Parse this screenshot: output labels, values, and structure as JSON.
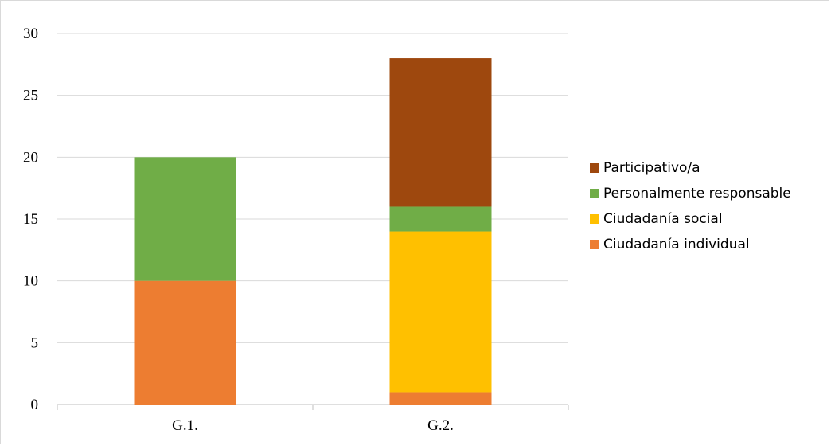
{
  "chart_data": {
    "type": "bar",
    "stacked": true,
    "categories": [
      "G.1.",
      "G.2."
    ],
    "series": [
      {
        "name": "Ciudadanía individual",
        "color": "#ED7D31",
        "values": [
          10,
          1
        ]
      },
      {
        "name": "Ciudadanía social",
        "color": "#FFC000",
        "values": [
          0,
          13
        ]
      },
      {
        "name": "Personalmente responsable",
        "color": "#70AD47",
        "values": [
          10,
          2
        ]
      },
      {
        "name": "Participativo/a",
        "color": "#9E480E",
        "values": [
          0,
          12
        ]
      }
    ],
    "ylim": [
      0,
      30
    ],
    "yticks": [
      0,
      5,
      10,
      15,
      20,
      25,
      30
    ],
    "grid": true,
    "legend_position": "right",
    "title": "",
    "xlabel": "",
    "ylabel": ""
  }
}
